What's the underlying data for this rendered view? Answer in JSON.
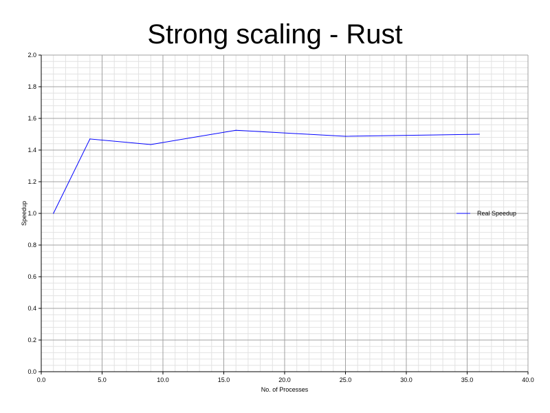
{
  "chart_data": {
    "type": "line",
    "title": "Strong scaling - Rust",
    "xlabel": "No. of Processes",
    "ylabel": "Speedup",
    "xlim": [
      0,
      40
    ],
    "ylim": [
      0,
      2
    ],
    "x_ticks": [
      "0.0",
      "5.0",
      "10.0",
      "15.0",
      "20.0",
      "25.0",
      "30.0",
      "35.0",
      "40.0"
    ],
    "y_ticks": [
      "0.0",
      "0.2",
      "0.4",
      "0.6",
      "0.8",
      "1.0",
      "1.2",
      "1.4",
      "1.6",
      "1.8",
      "2.0"
    ],
    "grid": true,
    "legend_position": "right",
    "series": [
      {
        "name": "Real Speedup",
        "color": "#0000ff",
        "x": [
          1,
          4,
          9,
          16,
          25,
          36
        ],
        "y": [
          1.0,
          1.47,
          1.435,
          1.525,
          1.487,
          1.5
        ]
      }
    ]
  }
}
